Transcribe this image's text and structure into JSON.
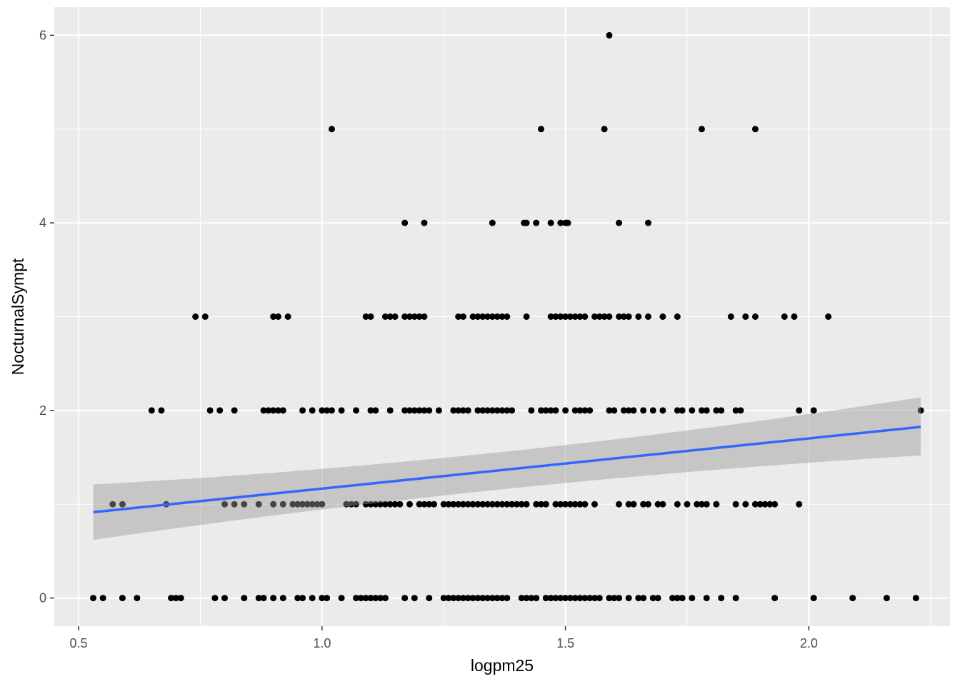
{
  "chart_data": {
    "type": "scatter",
    "title": "",
    "xlabel": "logpm25",
    "ylabel": "NocturnalSympt",
    "xlim": [
      0.45,
      2.29
    ],
    "ylim": [
      -0.3,
      6.3
    ],
    "x_ticks": [
      0.5,
      1.0,
      1.5,
      2.0
    ],
    "x_tick_labels": [
      "0.5",
      "1.0",
      "1.5",
      "2.0"
    ],
    "y_ticks": [
      0,
      2,
      4,
      6
    ],
    "y_tick_labels": [
      "0",
      "2",
      "4",
      "6"
    ],
    "grid": true,
    "legend": "none",
    "colors": {
      "panel_background": "#ebebeb",
      "grid": "#ffffff",
      "point": "#000000",
      "fit_line": "#3366ff",
      "confidence_band": "#999999"
    },
    "points": [
      {
        "y": 6,
        "x": [
          1.59
        ]
      },
      {
        "y": 5,
        "x": [
          1.02,
          1.45,
          1.58,
          1.78,
          1.89
        ]
      },
      {
        "y": 4,
        "x": [
          1.17,
          1.21,
          1.35,
          1.415,
          1.42,
          1.44,
          1.47,
          1.49,
          1.5,
          1.505,
          1.61,
          1.67
        ]
      },
      {
        "y": 3,
        "x": [
          0.74,
          0.76,
          0.9,
          0.91,
          0.93,
          1.09,
          1.1,
          1.13,
          1.14,
          1.15,
          1.17,
          1.18,
          1.19,
          1.2,
          1.21,
          1.28,
          1.29,
          1.31,
          1.32,
          1.33,
          1.34,
          1.35,
          1.36,
          1.37,
          1.38,
          1.42,
          1.47,
          1.48,
          1.49,
          1.5,
          1.51,
          1.52,
          1.53,
          1.54,
          1.56,
          1.57,
          1.58,
          1.59,
          1.61,
          1.62,
          1.63,
          1.65,
          1.67,
          1.7,
          1.73,
          1.84,
          1.87,
          1.89,
          1.95,
          1.97,
          2.04
        ]
      },
      {
        "y": 2,
        "x": [
          0.65,
          0.67,
          0.77,
          0.79,
          0.82,
          0.88,
          0.89,
          0.9,
          0.91,
          0.92,
          0.96,
          0.98,
          1.0,
          1.01,
          1.02,
          1.04,
          1.07,
          1.1,
          1.11,
          1.14,
          1.17,
          1.18,
          1.19,
          1.2,
          1.21,
          1.22,
          1.24,
          1.27,
          1.28,
          1.29,
          1.3,
          1.32,
          1.33,
          1.34,
          1.35,
          1.36,
          1.37,
          1.38,
          1.39,
          1.43,
          1.45,
          1.46,
          1.47,
          1.48,
          1.5,
          1.52,
          1.53,
          1.54,
          1.55,
          1.59,
          1.6,
          1.62,
          1.63,
          1.64,
          1.66,
          1.68,
          1.7,
          1.73,
          1.74,
          1.76,
          1.78,
          1.79,
          1.81,
          1.82,
          1.85,
          1.86,
          1.98,
          2.01,
          2.23
        ]
      },
      {
        "y": 1,
        "x": [
          0.57,
          0.59,
          0.68,
          0.8,
          0.82,
          0.84,
          0.87,
          0.9,
          0.92,
          0.94,
          0.95,
          0.96,
          0.97,
          0.98,
          0.99,
          1.0,
          1.05,
          1.06,
          1.07,
          1.09,
          1.1,
          1.11,
          1.12,
          1.13,
          1.14,
          1.15,
          1.16,
          1.18,
          1.2,
          1.21,
          1.22,
          1.23,
          1.25,
          1.26,
          1.27,
          1.28,
          1.29,
          1.3,
          1.31,
          1.32,
          1.33,
          1.34,
          1.35,
          1.36,
          1.37,
          1.38,
          1.39,
          1.4,
          1.41,
          1.42,
          1.44,
          1.45,
          1.46,
          1.48,
          1.49,
          1.5,
          1.51,
          1.52,
          1.53,
          1.54,
          1.56,
          1.61,
          1.63,
          1.64,
          1.66,
          1.67,
          1.69,
          1.7,
          1.73,
          1.75,
          1.77,
          1.78,
          1.79,
          1.81,
          1.85,
          1.87,
          1.89,
          1.9,
          1.91,
          1.92,
          1.93,
          1.98
        ]
      },
      {
        "y": 0,
        "x": [
          0.53,
          0.55,
          0.59,
          0.62,
          0.69,
          0.7,
          0.71,
          0.78,
          0.8,
          0.84,
          0.87,
          0.88,
          0.9,
          0.92,
          0.95,
          0.96,
          0.98,
          1.0,
          1.01,
          1.04,
          1.07,
          1.08,
          1.09,
          1.1,
          1.11,
          1.12,
          1.13,
          1.17,
          1.19,
          1.22,
          1.25,
          1.26,
          1.27,
          1.28,
          1.29,
          1.3,
          1.31,
          1.32,
          1.33,
          1.34,
          1.35,
          1.36,
          1.37,
          1.38,
          1.41,
          1.42,
          1.43,
          1.44,
          1.46,
          1.47,
          1.48,
          1.49,
          1.5,
          1.51,
          1.52,
          1.53,
          1.54,
          1.55,
          1.56,
          1.57,
          1.59,
          1.6,
          1.61,
          1.63,
          1.65,
          1.66,
          1.68,
          1.69,
          1.72,
          1.73,
          1.74,
          1.76,
          1.79,
          1.82,
          1.85,
          1.93,
          2.01,
          2.09,
          2.16,
          2.22
        ]
      }
    ],
    "fit": {
      "x": [
        0.53,
        2.23
      ],
      "y": [
        0.915,
        1.825
      ],
      "band_lower": [
        0.62,
        1.52
      ],
      "band_upper": [
        1.21,
        2.14
      ],
      "band_mid": {
        "x": 1.38,
        "lower": 1.29,
        "upper": 1.42
      }
    }
  }
}
